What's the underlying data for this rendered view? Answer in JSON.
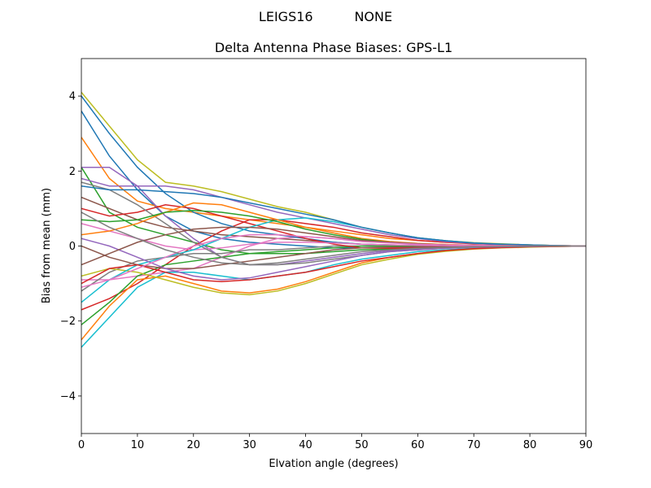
{
  "chart_data": {
    "type": "line",
    "suptitle": "LEIGS16          NONE",
    "title": "Delta Antenna Phase Biases: GPS-L1",
    "xlabel": "Elvation angle (degrees)",
    "ylabel": "Bias from mean (mm)",
    "x": [
      0,
      5,
      10,
      15,
      20,
      25,
      30,
      35,
      40,
      45,
      50,
      55,
      60,
      65,
      70,
      75,
      80,
      85,
      90
    ],
    "xlim": [
      0,
      90
    ],
    "xticks": [
      0,
      10,
      20,
      30,
      40,
      50,
      60,
      70,
      80,
      90
    ],
    "ylim": [
      -5,
      5
    ],
    "yticks": [
      {
        "value": -4,
        "label": "−4"
      },
      {
        "value": -2,
        "label": "−2"
      },
      0,
      2,
      4
    ],
    "grid": false,
    "series": [
      {
        "color": "#1f77b4",
        "values": [
          3.6,
          2.4,
          1.5,
          0.8,
          0.4,
          0.2,
          0.1,
          0.05,
          0,
          -0.05,
          -0.05,
          -0.04,
          -0.03,
          -0.02,
          -0.01,
          0,
          0,
          0,
          0
        ]
      },
      {
        "color": "#ff7f0e",
        "values": [
          2.9,
          1.8,
          1.2,
          1.0,
          0.9,
          0.8,
          0.7,
          0.6,
          0.5,
          0.4,
          0.3,
          0.2,
          0.15,
          0.1,
          0.07,
          0.05,
          0.03,
          0.01,
          0
        ]
      },
      {
        "color": "#2ca02c",
        "values": [
          2.1,
          0.9,
          0.5,
          0.3,
          0.1,
          -0.1,
          -0.2,
          -0.2,
          -0.2,
          -0.15,
          -0.1,
          -0.08,
          -0.05,
          -0.03,
          -0.02,
          -0.01,
          0,
          0,
          0
        ]
      },
      {
        "color": "#d62728",
        "values": [
          -1.7,
          -1.4,
          -1.0,
          -0.5,
          0,
          0.4,
          0.7,
          0.7,
          0.6,
          0.5,
          0.35,
          0.25,
          0.15,
          0.1,
          0.06,
          0.04,
          0.02,
          0.01,
          0
        ]
      },
      {
        "color": "#9467bd",
        "values": [
          2.1,
          2.1,
          1.6,
          0.8,
          0.2,
          -0.3,
          -0.5,
          -0.5,
          -0.4,
          -0.3,
          -0.2,
          -0.12,
          -0.07,
          -0.04,
          -0.02,
          -0.01,
          0,
          0,
          0
        ]
      },
      {
        "color": "#8c564b",
        "values": [
          1.3,
          1.0,
          0.7,
          0.5,
          0.4,
          0.3,
          0.25,
          0.2,
          0.15,
          0.1,
          0.05,
          0.03,
          0.02,
          0.01,
          0,
          0,
          0,
          0,
          0
        ]
      },
      {
        "color": "#e377c2",
        "values": [
          -0.9,
          -0.9,
          -0.8,
          -0.7,
          -0.6,
          -0.3,
          0,
          0.2,
          0.25,
          0.2,
          0.15,
          0.1,
          0.06,
          0.04,
          0.02,
          0.01,
          0,
          0,
          0
        ]
      },
      {
        "color": "#7f7f7f",
        "values": [
          -1.2,
          -0.7,
          -0.4,
          -0.3,
          -0.2,
          -0.2,
          -0.1,
          -0.1,
          -0.05,
          0,
          0,
          0,
          0,
          0,
          0,
          0,
          0,
          0,
          0
        ]
      },
      {
        "color": "#bcbd22",
        "values": [
          4.1,
          3.2,
          2.3,
          1.7,
          1.6,
          1.45,
          1.25,
          1.05,
          0.9,
          0.7,
          0.5,
          0.35,
          0.22,
          0.14,
          0.09,
          0.06,
          0.03,
          0.01,
          0
        ]
      },
      {
        "color": "#17becf",
        "values": [
          -2.7,
          -1.9,
          -1.1,
          -0.7,
          -0.7,
          -0.8,
          -0.9,
          -0.8,
          -0.7,
          -0.5,
          -0.35,
          -0.25,
          -0.15,
          -0.1,
          -0.06,
          -0.04,
          -0.02,
          -0.01,
          0
        ]
      },
      {
        "color": "#1f77b4",
        "values": [
          4.0,
          3.0,
          2.1,
          1.4,
          0.9,
          0.6,
          0.4,
          0.3,
          0.2,
          0.1,
          0.05,
          0.03,
          0.02,
          0.01,
          0,
          0,
          0,
          0,
          0
        ]
      },
      {
        "color": "#ff7f0e",
        "values": [
          -2.5,
          -1.6,
          -0.9,
          -0.8,
          -1.0,
          -1.2,
          -1.25,
          -1.15,
          -0.95,
          -0.7,
          -0.45,
          -0.3,
          -0.2,
          -0.12,
          -0.07,
          -0.04,
          -0.02,
          -0.01,
          0
        ]
      },
      {
        "color": "#2ca02c",
        "values": [
          -2.1,
          -1.5,
          -0.8,
          -0.5,
          -0.4,
          -0.3,
          -0.2,
          -0.15,
          -0.1,
          -0.05,
          0,
          0,
          0,
          0,
          0,
          0,
          0,
          0,
          0
        ]
      },
      {
        "color": "#d62728",
        "values": [
          1.0,
          0.8,
          0.9,
          1.1,
          1.0,
          0.8,
          0.6,
          0.4,
          0.2,
          0.05,
          -0.05,
          -0.06,
          -0.05,
          -0.03,
          -0.02,
          -0.01,
          0,
          0,
          0
        ]
      },
      {
        "color": "#9467bd",
        "values": [
          1.8,
          1.6,
          1.6,
          1.6,
          1.5,
          1.3,
          1.1,
          0.9,
          0.75,
          0.6,
          0.45,
          0.3,
          0.2,
          0.12,
          0.07,
          0.04,
          0.02,
          0.01,
          0
        ]
      },
      {
        "color": "#8c564b",
        "values": [
          0,
          -0.3,
          -0.5,
          -0.6,
          -0.6,
          -0.5,
          -0.4,
          -0.3,
          -0.2,
          -0.1,
          -0.05,
          -0.03,
          -0.02,
          -0.01,
          0,
          0,
          0,
          0,
          0
        ]
      },
      {
        "color": "#e377c2",
        "values": [
          0.6,
          0.4,
          0.2,
          0,
          -0.1,
          -0.05,
          0.05,
          0.1,
          0.1,
          0.08,
          0.05,
          0.03,
          0.02,
          0.01,
          0,
          0,
          0,
          0,
          0
        ]
      },
      {
        "color": "#7f7f7f",
        "values": [
          1.7,
          1.5,
          1.1,
          0.6,
          0.1,
          -0.3,
          -0.5,
          -0.5,
          -0.45,
          -0.35,
          -0.25,
          -0.15,
          -0.1,
          -0.06,
          -0.03,
          -0.02,
          -0.01,
          0,
          0
        ]
      },
      {
        "color": "#bcbd22",
        "values": [
          -0.8,
          -0.6,
          -0.7,
          -0.9,
          -1.1,
          -1.25,
          -1.3,
          -1.2,
          -1.0,
          -0.75,
          -0.5,
          -0.35,
          -0.22,
          -0.14,
          -0.08,
          -0.05,
          -0.03,
          -0.01,
          0
        ]
      },
      {
        "color": "#17becf",
        "values": [
          -1.5,
          -0.9,
          -0.5,
          -0.3,
          -0.1,
          0.2,
          0.5,
          0.7,
          0.75,
          0.65,
          0.5,
          0.35,
          0.22,
          0.14,
          0.08,
          0.05,
          0.03,
          0.01,
          0
        ]
      },
      {
        "color": "#1f77b4",
        "values": [
          1.6,
          1.5,
          1.5,
          1.45,
          1.4,
          1.3,
          1.15,
          1.0,
          0.85,
          0.7,
          0.5,
          0.35,
          0.22,
          0.14,
          0.08,
          0.05,
          0.03,
          0.01,
          0
        ]
      },
      {
        "color": "#ff7f0e",
        "values": [
          0.3,
          0.4,
          0.6,
          0.9,
          1.15,
          1.1,
          0.9,
          0.7,
          0.5,
          0.35,
          0.2,
          0.12,
          0.07,
          0.04,
          0.02,
          0.01,
          0,
          0,
          0
        ]
      },
      {
        "color": "#2ca02c",
        "values": [
          0.7,
          0.65,
          0.7,
          0.9,
          0.95,
          0.9,
          0.8,
          0.65,
          0.45,
          0.3,
          0.18,
          0.1,
          0.06,
          0.03,
          0.02,
          0.01,
          0,
          0,
          0
        ]
      },
      {
        "color": "#d62728",
        "values": [
          -1.0,
          -0.6,
          -0.5,
          -0.7,
          -0.9,
          -0.95,
          -0.9,
          -0.8,
          -0.7,
          -0.55,
          -0.4,
          -0.3,
          -0.2,
          -0.12,
          -0.07,
          -0.04,
          -0.02,
          -0.01,
          0
        ]
      },
      {
        "color": "#9467bd",
        "values": [
          0.2,
          0,
          -0.3,
          -0.6,
          -0.8,
          -0.9,
          -0.85,
          -0.7,
          -0.55,
          -0.4,
          -0.25,
          -0.15,
          -0.1,
          -0.06,
          -0.03,
          -0.02,
          -0.01,
          0,
          0
        ]
      },
      {
        "color": "#8c564b",
        "values": [
          -0.5,
          -0.2,
          0.1,
          0.3,
          0.45,
          0.5,
          0.5,
          0.45,
          0.35,
          0.25,
          0.15,
          0.1,
          0.06,
          0.03,
          0.02,
          0.01,
          0,
          0,
          0
        ]
      },
      {
        "color": "#e377c2",
        "values": [
          -1.1,
          -0.9,
          -0.6,
          -0.3,
          0,
          0.2,
          0.3,
          0.3,
          0.25,
          0.2,
          0.12,
          0.08,
          0.05,
          0.03,
          0.02,
          0.01,
          0,
          0,
          0
        ]
      },
      {
        "color": "#7f7f7f",
        "values": [
          0.9,
          0.5,
          0.2,
          -0.1,
          -0.3,
          -0.45,
          -0.5,
          -0.45,
          -0.35,
          -0.25,
          -0.15,
          -0.1,
          -0.06,
          -0.04,
          -0.02,
          -0.01,
          0,
          0,
          0
        ]
      }
    ]
  }
}
